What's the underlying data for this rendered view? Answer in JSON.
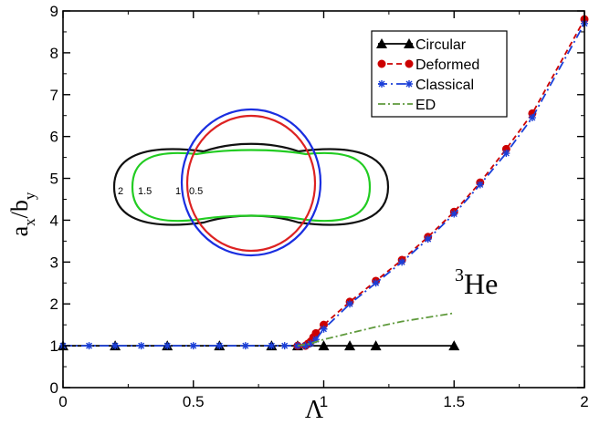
{
  "chart_data": {
    "type": "line",
    "xlabel": "Λ",
    "ylabel_main": "a",
    "ylabel_sub1": "x",
    "ylabel_mid": "/b",
    "ylabel_sub2": "y",
    "xlim": [
      0,
      2
    ],
    "ylim": [
      0,
      9
    ],
    "xticks": [
      "0",
      "0.5",
      "1",
      "1.5",
      "2"
    ],
    "yticks": [
      "0",
      "1",
      "2",
      "3",
      "4",
      "5",
      "6",
      "7",
      "8",
      "9"
    ],
    "grid": false,
    "legend_position": "top-right",
    "series": [
      {
        "name": "Circular",
        "color": "#000000",
        "marker": "triangle",
        "dash": "solid",
        "x": [
          0,
          0.2,
          0.4,
          0.6,
          0.8,
          0.9,
          1.0,
          1.1,
          1.2,
          1.5
        ],
        "y": [
          1,
          1,
          1,
          1,
          1,
          1,
          1,
          1,
          1,
          1
        ]
      },
      {
        "name": "Deformed",
        "color": "#cc0000",
        "marker": "circle",
        "dash": "6,4",
        "x": [
          0.9,
          0.93,
          0.94,
          0.95,
          0.96,
          0.97,
          1.0,
          1.1,
          1.2,
          1.3,
          1.4,
          1.5,
          1.6,
          1.7,
          1.8,
          2.0
        ],
        "y": [
          1,
          1.0,
          1.05,
          1.1,
          1.2,
          1.3,
          1.5,
          2.05,
          2.55,
          3.05,
          3.6,
          4.2,
          4.9,
          5.7,
          6.55,
          8.8
        ]
      },
      {
        "name": "Classical",
        "color": "#1a3fd8",
        "marker": "star",
        "dash": "10,4,2,4",
        "x": [
          0,
          0.1,
          0.2,
          0.3,
          0.4,
          0.5,
          0.6,
          0.7,
          0.8,
          0.85,
          0.9,
          0.93,
          0.95,
          0.97,
          1.0,
          1.1,
          1.2,
          1.3,
          1.4,
          1.5,
          1.6,
          1.7,
          1.8,
          2.0
        ],
        "y": [
          1,
          1,
          1,
          1,
          1,
          1,
          1,
          1,
          1,
          1,
          1,
          1.0,
          1.05,
          1.15,
          1.4,
          2.0,
          2.5,
          3.0,
          3.55,
          4.15,
          4.85,
          5.6,
          6.45,
          8.7
        ]
      },
      {
        "name": "ED",
        "color": "#5f9a3c",
        "marker": "none",
        "dash": "8,3,2,3",
        "x": [
          0.9,
          0.95,
          1.0,
          1.1,
          1.2,
          1.3,
          1.4,
          1.5
        ],
        "y": [
          1.0,
          1.05,
          1.15,
          1.3,
          1.45,
          1.58,
          1.68,
          1.78
        ]
      }
    ],
    "annotation_sup": "3",
    "annotation_main": "He",
    "inset": {
      "labels": [
        "2",
        "1.5",
        "1",
        "0.5"
      ]
    }
  }
}
